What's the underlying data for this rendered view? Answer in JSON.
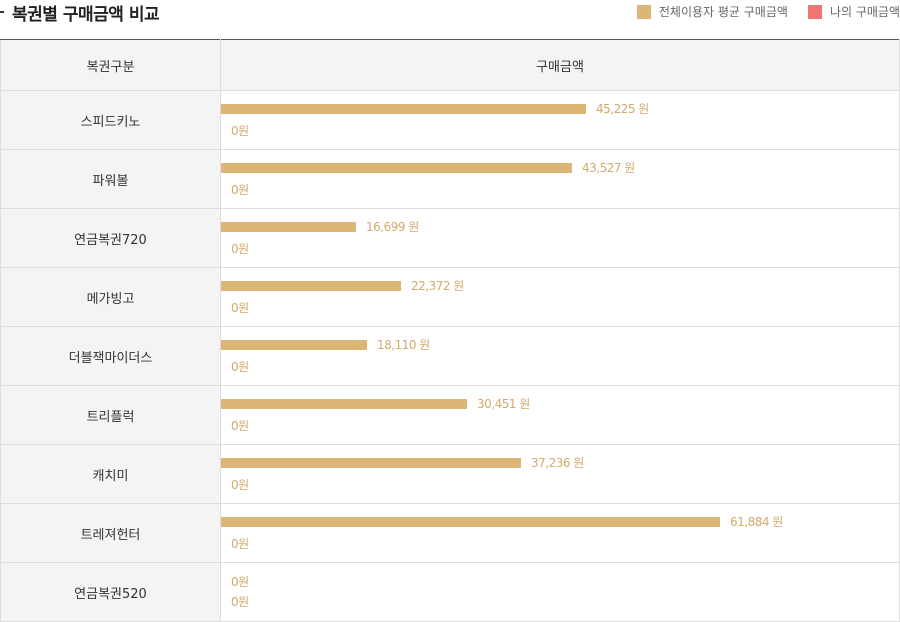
{
  "title": "복권별 구매금액 비교",
  "legend": [
    {
      "label": "전체이용자 평균 구매금액",
      "color": "#dcb677"
    },
    {
      "label": "나의 구매금액",
      "color": "#f07575"
    }
  ],
  "table_header": {
    "category": "복권구분",
    "amount": "구매금액"
  },
  "chart_data": {
    "type": "bar",
    "orientation": "horizontal",
    "max_value": 61884,
    "categories": [
      "스피드키노",
      "파워볼",
      "연금복권720",
      "메가빙고",
      "더블잭마이더스",
      "트리플럭",
      "캐치미",
      "트레져헌터",
      "연금복권520"
    ],
    "series": [
      {
        "name": "전체이용자 평균 구매금액",
        "color": "#dcb677",
        "values": [
          45225,
          43527,
          16699,
          22372,
          18110,
          30451,
          37236,
          61884,
          0
        ],
        "labels": [
          "45,225 원",
          "43,527 원",
          "16,699 원",
          "22,372 원",
          "18,110 원",
          "30,451 원",
          "37,236 원",
          "61,884 원",
          "0원"
        ]
      },
      {
        "name": "나의 구매금액",
        "color": "#f07575",
        "values": [
          0,
          0,
          0,
          0,
          0,
          0,
          0,
          0,
          0
        ],
        "labels": [
          "0원",
          "0원",
          "0원",
          "0원",
          "0원",
          "0원",
          "0원",
          "0원",
          "0원"
        ]
      }
    ]
  }
}
